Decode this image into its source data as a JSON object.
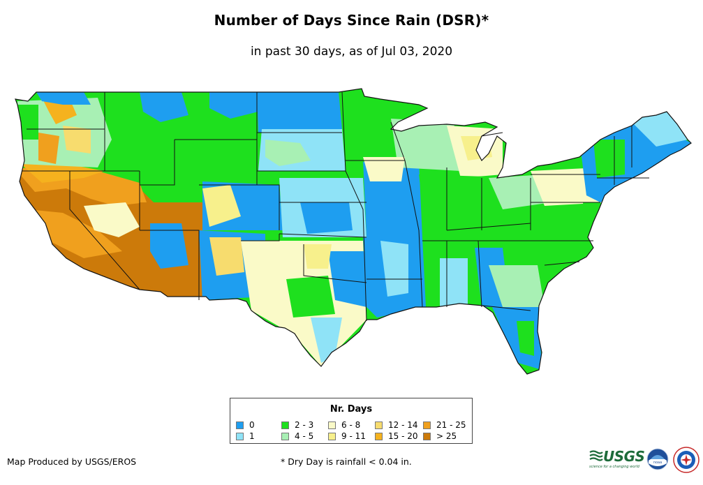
{
  "header": {
    "title": "Number of Days Since Rain (DSR)*",
    "subtitle": "in past 30 days, as of Jul 03, 2020"
  },
  "legend": {
    "title": "Nr. Days",
    "items": [
      {
        "label": "0",
        "color": "#1e9ef0"
      },
      {
        "label": "1",
        "color": "#8fe3f7"
      },
      {
        "label": "2 - 3",
        "color": "#1ee01e"
      },
      {
        "label": "4 - 5",
        "color": "#a8f0b4"
      },
      {
        "label": "6 - 8",
        "color": "#fafac8"
      },
      {
        "label": "9 - 11",
        "color": "#f7f08c"
      },
      {
        "label": "12 - 14",
        "color": "#f7dc6e"
      },
      {
        "label": "15 - 20",
        "color": "#f5b21e"
      },
      {
        "label": "21 - 25",
        "color": "#f0a01e"
      },
      {
        "label": "> 25",
        "color": "#cc7a0a"
      }
    ]
  },
  "footer": {
    "credit": "Map Produced by USGS/EROS",
    "footnote": "* Dry Day is rainfall < 0.04 in.",
    "usgs_logo_text": "USGS",
    "usgs_tagline": "science for a changing world"
  },
  "colors": {
    "d0": "#1e9ef0",
    "d1": "#8fe3f7",
    "d2_3": "#1ee01e",
    "d4_5": "#a8f0b4",
    "d6_8": "#fafac8",
    "d9_11": "#f7f08c",
    "d12_14": "#f7dc6e",
    "d15_20": "#f5b21e",
    "d21_25": "#f0a01e",
    "d25plus": "#cc7a0a",
    "usgs_green": "#1d6b3a"
  },
  "map": {
    "region": "Contiguous United States",
    "boundaries": "state borders"
  }
}
